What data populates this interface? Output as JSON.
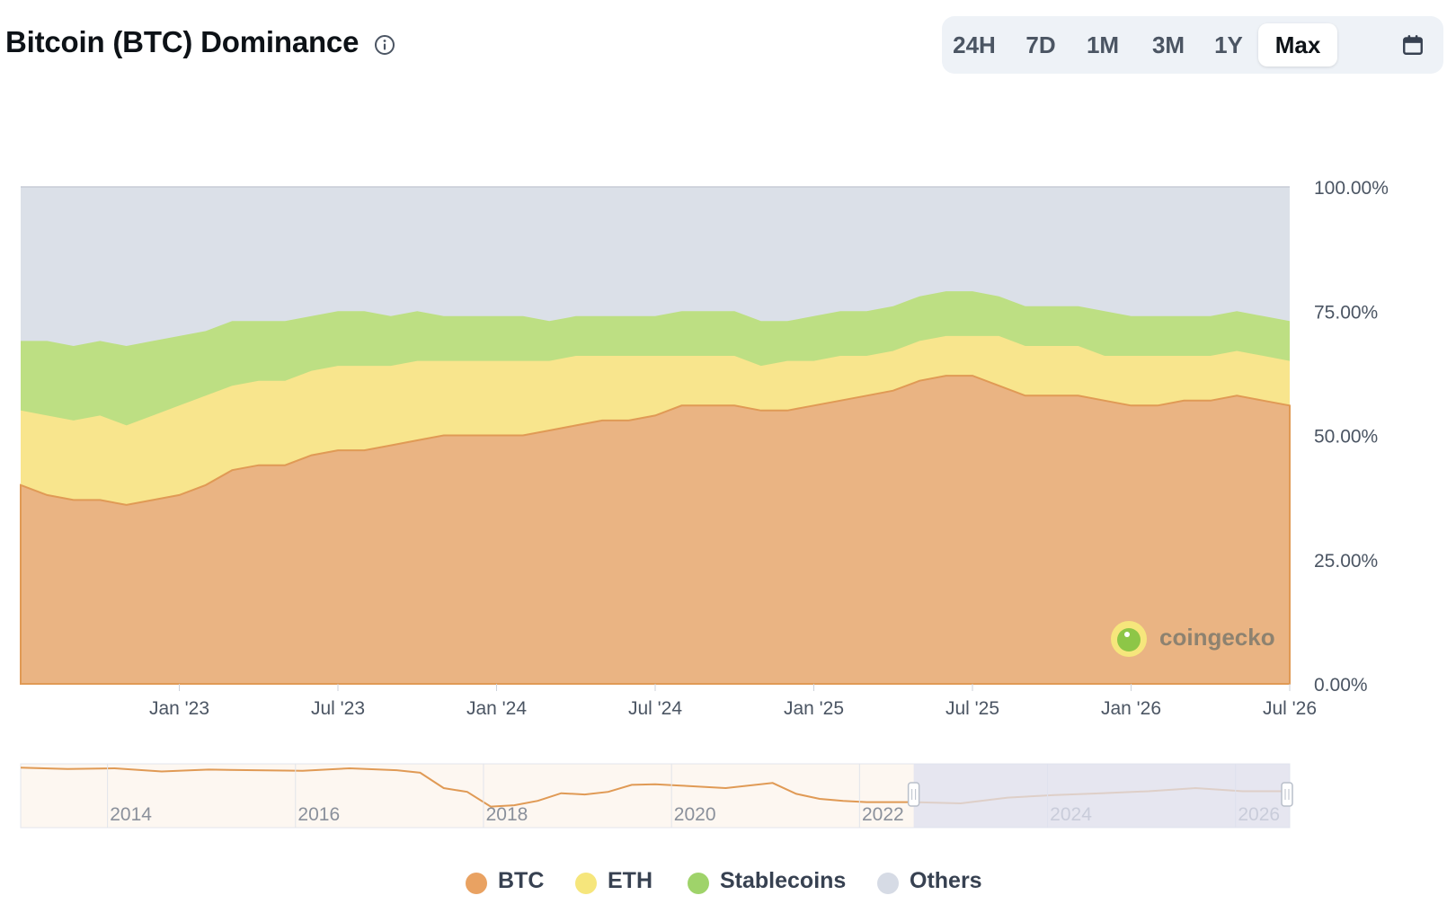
{
  "header": {
    "title": "Bitcoin (BTC) Dominance",
    "info_icon": "info-circle-icon",
    "ranges": [
      "24H",
      "7D",
      "1M",
      "3M",
      "1Y",
      "Max"
    ],
    "active_range": "Max",
    "calendar_icon": "calendar-icon"
  },
  "watermark": {
    "text": "coingecko",
    "logo_icon": "gecko-logo-icon"
  },
  "colors": {
    "btc": "#eab483",
    "eth": "#f8e58d",
    "stablecoins": "#bddf83",
    "others": "#dbe0e8",
    "btc_line": "#e09a55",
    "navigator_selection": "#dde0ef"
  },
  "legend": [
    {
      "name": "BTC",
      "color": "#e9a262"
    },
    {
      "name": "ETH",
      "color": "#f6e67c"
    },
    {
      "name": "Stablecoins",
      "color": "#9fd36a"
    },
    {
      "name": "Others",
      "color": "#d6dbe5"
    }
  ],
  "chart_data": {
    "type": "area",
    "stacked": true,
    "percent_stacked": true,
    "x_unit": "date",
    "x_ticks": [
      "Jan '23",
      "Jul '23",
      "Jan '24",
      "Jul '24",
      "Jan '25",
      "Jul '25",
      "Jan '26",
      "Jul '26"
    ],
    "y_ticks": [
      "0.00%",
      "25.00%",
      "50.00%",
      "75.00%",
      "100.00%"
    ],
    "ylim": [
      0,
      100
    ],
    "y_axis_position": "right",
    "x": [
      "2022-07",
      "2022-08",
      "2022-09",
      "2022-10",
      "2022-11",
      "2022-12",
      "2023-01",
      "2023-02",
      "2023-03",
      "2023-04",
      "2023-05",
      "2023-06",
      "2023-07",
      "2023-08",
      "2023-09",
      "2023-10",
      "2023-11",
      "2023-12",
      "2024-01",
      "2024-02",
      "2024-03",
      "2024-04",
      "2024-05",
      "2024-06",
      "2024-07",
      "2024-08",
      "2024-09",
      "2024-10",
      "2024-11",
      "2024-12",
      "2025-01",
      "2025-02",
      "2025-03",
      "2025-04",
      "2025-05",
      "2025-06",
      "2025-07",
      "2025-08",
      "2025-09",
      "2025-10",
      "2025-11",
      "2025-12",
      "2026-01",
      "2026-02",
      "2026-03",
      "2026-04",
      "2026-05",
      "2026-06",
      "2026-07"
    ],
    "series": [
      {
        "name": "BTC",
        "values": [
          40,
          38,
          37,
          37,
          36,
          37,
          38,
          40,
          43,
          44,
          44,
          46,
          47,
          47,
          48,
          49,
          50,
          50,
          50,
          50,
          51,
          52,
          53,
          53,
          54,
          56,
          56,
          56,
          55,
          55,
          56,
          57,
          58,
          59,
          61,
          62,
          62,
          60,
          58,
          58,
          58,
          57,
          56,
          56,
          57,
          57,
          58,
          57,
          56
        ]
      },
      {
        "name": "ETH",
        "values": [
          15,
          16,
          16,
          17,
          16,
          17,
          18,
          18,
          17,
          17,
          17,
          17,
          17,
          17,
          16,
          16,
          15,
          15,
          15,
          15,
          14,
          14,
          13,
          13,
          12,
          10,
          10,
          10,
          9,
          10,
          9,
          9,
          8,
          8,
          8,
          8,
          8,
          10,
          10,
          10,
          10,
          9,
          10,
          10,
          9,
          9,
          9,
          9,
          9
        ]
      },
      {
        "name": "Stablecoins",
        "values": [
          14,
          15,
          15,
          15,
          16,
          15,
          14,
          13,
          13,
          12,
          12,
          11,
          11,
          11,
          10,
          10,
          9,
          9,
          9,
          9,
          8,
          8,
          8,
          8,
          8,
          9,
          9,
          9,
          9,
          8,
          9,
          9,
          9,
          9,
          9,
          9,
          9,
          8,
          8,
          8,
          8,
          9,
          8,
          8,
          8,
          8,
          8,
          8,
          8
        ]
      },
      {
        "name": "Others",
        "values": [
          31,
          31,
          32,
          31,
          32,
          31,
          30,
          29,
          27,
          27,
          27,
          26,
          25,
          25,
          26,
          25,
          26,
          26,
          26,
          26,
          27,
          26,
          26,
          26,
          26,
          25,
          25,
          25,
          27,
          27,
          26,
          25,
          25,
          24,
          22,
          21,
          21,
          22,
          24,
          24,
          24,
          25,
          26,
          26,
          26,
          26,
          25,
          26,
          27
        ]
      }
    ],
    "navigator": {
      "x_ticks": [
        "2014",
        "2016",
        "2018",
        "2020",
        "2022",
        "2024",
        "2026"
      ],
      "x": [
        "2013-01",
        "2013-07",
        "2014-01",
        "2014-07",
        "2015-01",
        "2015-07",
        "2016-01",
        "2016-07",
        "2017-01",
        "2017-04",
        "2017-07",
        "2017-10",
        "2018-01",
        "2018-04",
        "2018-07",
        "2018-10",
        "2019-01",
        "2019-04",
        "2019-07",
        "2019-10",
        "2020-01",
        "2020-07",
        "2021-01",
        "2021-04",
        "2021-07",
        "2021-10",
        "2022-01",
        "2022-04",
        "2022-07",
        "2023-01",
        "2023-07",
        "2024-01",
        "2024-07",
        "2025-01",
        "2025-07",
        "2026-01",
        "2026-07"
      ],
      "btc_values": [
        94,
        92,
        93,
        88,
        91,
        90,
        89,
        93,
        90,
        86,
        62,
        56,
        33,
        35,
        42,
        54,
        52,
        56,
        67,
        68,
        66,
        62,
        70,
        53,
        45,
        42,
        40,
        40,
        40,
        38,
        47,
        51,
        54,
        57,
        62,
        57,
        57
      ],
      "selected_range": [
        "2022-07",
        "2026-07"
      ]
    }
  }
}
